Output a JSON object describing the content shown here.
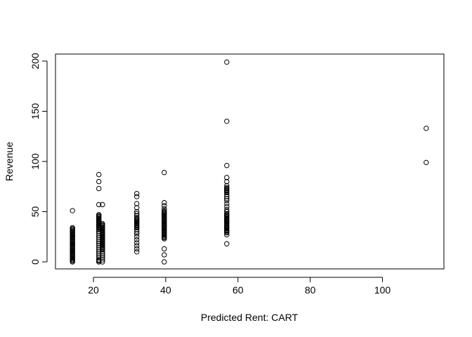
{
  "chart_data": {
    "type": "scatter",
    "xlabel": "Predicted Rent: CART",
    "ylabel": "Revenue",
    "xlim": [
      9.5,
      117
    ],
    "ylim": [
      -7,
      207
    ],
    "xticks": [
      20,
      40,
      60,
      80,
      100
    ],
    "yticks": [
      0,
      50,
      100,
      150,
      200
    ],
    "marker": "open-circle",
    "points_color": "#000000",
    "series": [
      {
        "x": [
          14.2,
          14.2,
          14.2,
          14.2,
          14.2,
          14.2,
          14.2,
          14.2,
          14.2,
          14.2,
          14.2,
          14.2,
          14.2,
          14.2,
          14.2,
          14.2,
          14.2,
          14.2,
          14.2,
          14.2,
          14.2,
          14.2,
          14.2,
          14.2,
          14.2,
          14.2,
          14.2,
          14.2,
          14.2,
          14.2,
          14.2,
          14.2,
          14.2,
          14.2,
          14.2,
          14.2,
          21.5,
          21.5,
          21.5,
          21.5,
          21.5,
          21.5,
          21.5,
          21.5,
          21.5,
          21.5,
          21.5,
          21.5,
          21.5,
          21.5,
          21.5,
          21.5,
          21.5,
          21.5,
          21.5,
          21.5,
          21.5,
          21.5,
          21.5,
          21.5,
          21.5,
          21.5,
          21.5,
          21.5,
          21.5,
          21.5,
          21.5,
          21.5,
          21.5,
          21.5,
          21.5,
          21.5,
          21.5,
          21.5,
          21.5,
          21.5,
          21.5,
          22.5,
          22.5,
          22.5,
          22.5,
          22.5,
          22.5,
          22.5,
          22.5,
          22.5,
          22.5,
          22.5,
          22.5,
          22.5,
          22.5,
          22.5,
          22.5,
          22.5,
          22.5,
          22.5,
          22.5,
          22.5,
          22.5,
          22.5,
          22.5,
          22.5,
          22.5,
          22.5,
          22.5,
          22.5,
          22.5,
          22.5,
          22.5,
          22.5,
          22.5,
          22.5,
          22.5,
          22.5,
          32.0,
          32.0,
          32.0,
          32.0,
          32.0,
          32.0,
          32.0,
          32.0,
          32.0,
          32.0,
          32.0,
          32.0,
          32.0,
          32.0,
          32.0,
          32.0,
          32.0,
          32.0,
          32.0,
          32.0,
          32.0,
          32.0,
          32.0,
          32.0,
          32.0,
          32.0,
          32.0,
          39.6,
          39.6,
          39.6,
          39.6,
          39.6,
          39.6,
          39.6,
          39.6,
          39.6,
          39.6,
          39.6,
          39.6,
          39.6,
          39.6,
          39.6,
          39.6,
          39.6,
          39.6,
          39.6,
          39.6,
          39.6,
          39.6,
          39.6,
          39.6,
          39.6,
          39.6,
          39.6,
          39.6,
          39.6,
          39.6,
          39.6,
          39.6,
          39.6,
          39.6,
          39.6,
          39.6,
          56.9,
          56.9,
          56.9,
          56.9,
          56.9,
          56.9,
          56.9,
          56.9,
          56.9,
          56.9,
          56.9,
          56.9,
          56.9,
          56.9,
          56.9,
          56.9,
          56.9,
          56.9,
          56.9,
          56.9,
          56.9,
          56.9,
          56.9,
          56.9,
          56.9,
          56.9,
          56.9,
          56.9,
          56.9,
          56.9,
          56.9,
          56.9,
          56.9,
          56.9,
          56.9,
          56.9,
          56.9,
          56.9,
          56.9,
          56.9,
          56.9,
          56.9,
          112.1,
          112.1
        ],
        "y": [
          0,
          1,
          2,
          3,
          4,
          5,
          6,
          7,
          8,
          9,
          10,
          11,
          12,
          13,
          14,
          15,
          16,
          17,
          18,
          19,
          20,
          21,
          22,
          23,
          24,
          25,
          26,
          27,
          28,
          29,
          30,
          31,
          32,
          33,
          34,
          51,
          0,
          1,
          2,
          4,
          6,
          8,
          10,
          12,
          14,
          16,
          18,
          20,
          22,
          24,
          26,
          28,
          30,
          32,
          34,
          35,
          36,
          37,
          38,
          39,
          40,
          41,
          42,
          43,
          44,
          45,
          46,
          47,
          40,
          36,
          33,
          30,
          57,
          73,
          80,
          87,
          2,
          0,
          2,
          4,
          6,
          8,
          10,
          12,
          14,
          15,
          16,
          17,
          18,
          19,
          20,
          21,
          22,
          23,
          24,
          25,
          26,
          27,
          28,
          29,
          30,
          31,
          32,
          33,
          34,
          35,
          36,
          37,
          38,
          22,
          28,
          24,
          13,
          57,
          10,
          13,
          16,
          19,
          22,
          25,
          28,
          30,
          32,
          34,
          35,
          36,
          37,
          38,
          39,
          40,
          41,
          42,
          43,
          44,
          46,
          48,
          50,
          54,
          58,
          65,
          68,
          0,
          7,
          13,
          23,
          24,
          25,
          26,
          27,
          28,
          29,
          30,
          31,
          32,
          33,
          34,
          35,
          36,
          37,
          38,
          39,
          40,
          41,
          42,
          43,
          44,
          45,
          46,
          47,
          48,
          49,
          50,
          51,
          53,
          56,
          59,
          89,
          18,
          27,
          29,
          30,
          31,
          32,
          33,
          34,
          35,
          36,
          37,
          38,
          39,
          40,
          41,
          42,
          43,
          44,
          45,
          46,
          47,
          48,
          50,
          52,
          55,
          58,
          61,
          63,
          65,
          67,
          69,
          70,
          71,
          72,
          73,
          74,
          76,
          80,
          84,
          96,
          140,
          199,
          99,
          133
        ]
      }
    ]
  }
}
